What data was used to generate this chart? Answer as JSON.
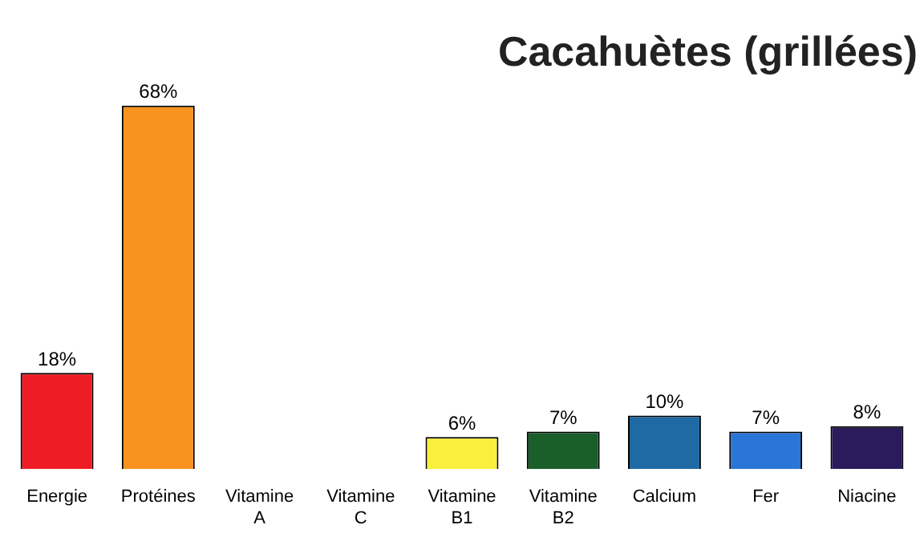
{
  "chart_data": {
    "type": "bar",
    "title": "Cacahuètes (grillées)",
    "categories": [
      "Energie",
      "Protéines",
      "Vitamine A",
      "Vitamine C",
      "Vitamine B1",
      "Vitamine B2",
      "Calcium",
      "Fer",
      "Niacine"
    ],
    "values": [
      18,
      68,
      null,
      null,
      6,
      7,
      10,
      7,
      8
    ],
    "colors": [
      "#ee1c25",
      "#f7931e",
      "#cccccc",
      "#cccccc",
      "#f9ef3c",
      "#1a5e2a",
      "#1f6aa5",
      "#2a75d6",
      "#2b1b5c"
    ],
    "value_labels": [
      "18%",
      "68%",
      null,
      null,
      "6%",
      "7%",
      "10%",
      "7%",
      "8%"
    ],
    "grid": false,
    "legend": false
  }
}
